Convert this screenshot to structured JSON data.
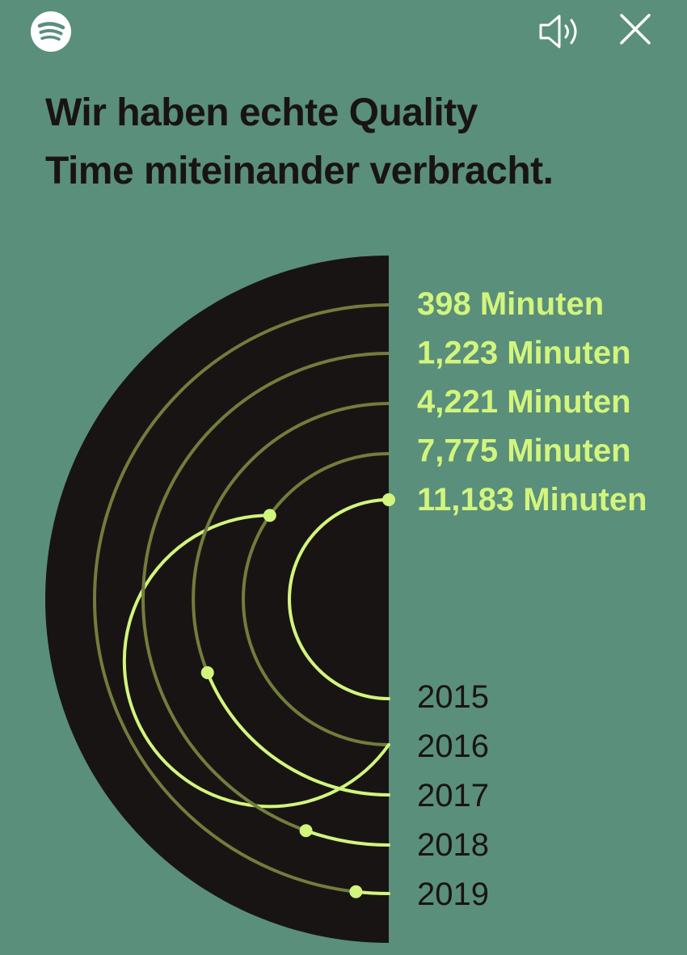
{
  "header": {
    "logo_icon": "spotify-logo-icon",
    "sound_icon": "speaker-icon",
    "close_icon": "close-icon"
  },
  "headline": {
    "line1": "Wir haben echte Quality",
    "line2": "Time miteinander verbracht."
  },
  "colors": {
    "background": "#5a8f7b",
    "disc": "#191414",
    "accent": "#d2f57d",
    "track_dim": "#727d3c",
    "text_dark": "#191414"
  },
  "chart_data": {
    "type": "radial-bar",
    "categories": [
      "2015",
      "2016",
      "2017",
      "2018",
      "2019"
    ],
    "values": [
      398,
      1223,
      4221,
      7775,
      11183
    ],
    "value_labels": [
      "398 Minuten",
      "1,223 Minuten",
      "4,221 Minuten",
      "7,775 Minuten",
      "11,183 Minuten"
    ],
    "title": ""
  }
}
